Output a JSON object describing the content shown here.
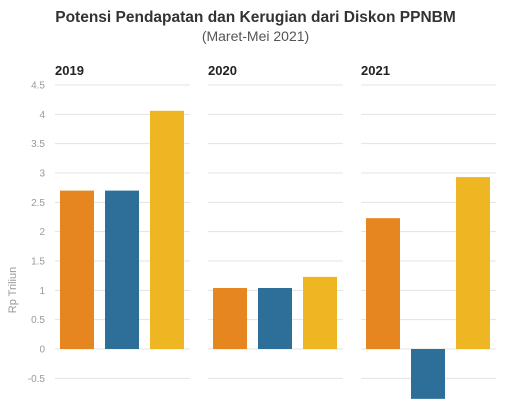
{
  "chart_data": {
    "type": "bar",
    "title": "Potensi Pendapatan dan Kerugian dari Diskon PPNBM",
    "subtitle": "(Maret-Mei 2021)",
    "ylabel": "Rp Triliun",
    "ylim": [
      -0.85,
      4.5
    ],
    "yticks": [
      "4.5",
      "4",
      "3.5",
      "3",
      "2.5",
      "2",
      "1.5",
      "1",
      "0.5",
      "0",
      "-0.5"
    ],
    "ytick_values": [
      4.5,
      4,
      3.5,
      3,
      2.5,
      2,
      1.5,
      1,
      0.5,
      0,
      -0.5
    ],
    "grid": true,
    "panels": [
      {
        "label": "2019",
        "values": [
          2.7,
          2.7,
          4.06
        ]
      },
      {
        "label": "2020",
        "values": [
          1.04,
          1.04,
          1.23
        ]
      },
      {
        "label": "2021",
        "values": [
          2.23,
          -0.85,
          2.93
        ]
      }
    ],
    "series_colors": [
      "#e5861f",
      "#2e6f9a",
      "#efb623"
    ]
  }
}
